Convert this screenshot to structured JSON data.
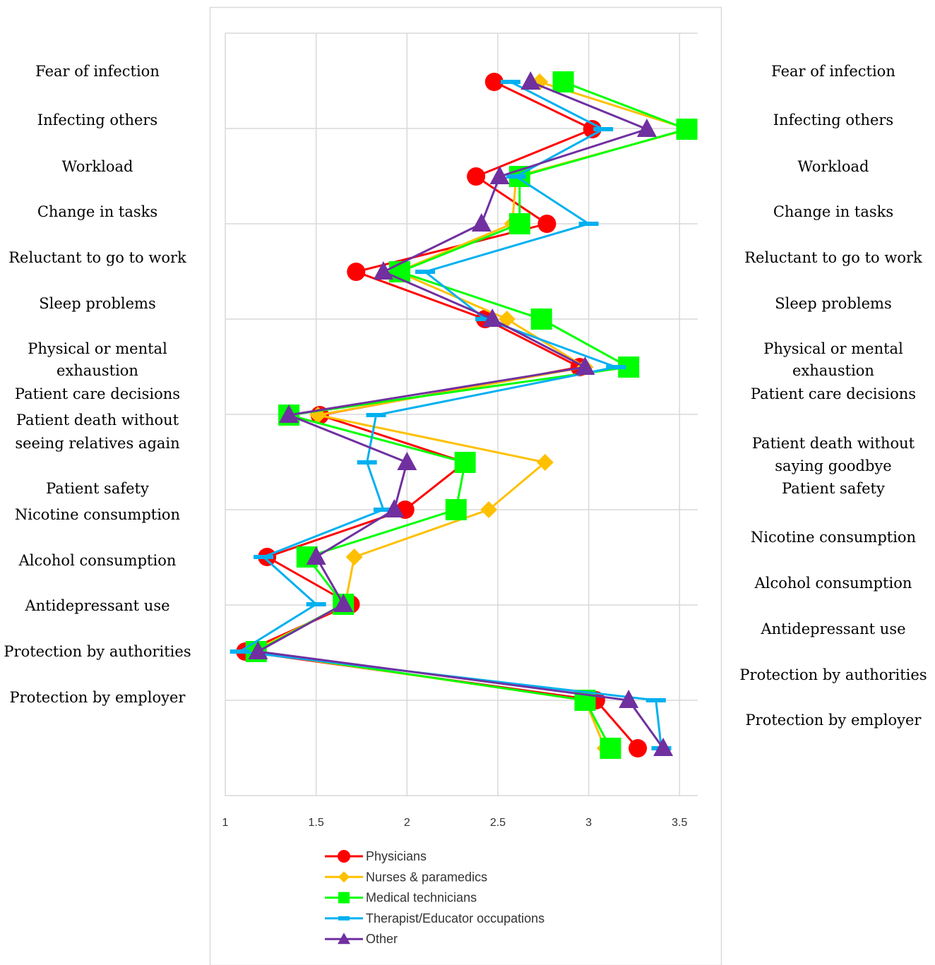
{
  "chart_data": {
    "type": "line",
    "orientation": "horizontal-values",
    "xlim": [
      1,
      3.6
    ],
    "x_ticks": [
      "1",
      "1.5",
      "2",
      "2.5",
      "3",
      "3.5"
    ],
    "x_tick_values": [
      1,
      1.5,
      2,
      2.5,
      3,
      3.5
    ],
    "grid": "vertical",
    "legend_position": "bottom",
    "left_categories": [
      "Fear of infection",
      "Infecting others",
      "Workload",
      "Change in tasks",
      "Reluctant to go to work",
      "Sleep problems",
      "Physical or mental exhaustion",
      "Patient care decisions",
      "Patient death without seeing relatives again",
      "Patient safety",
      "Nicotine consumption",
      "Alcohol consumption",
      "Antidepressant use",
      "Protection by authorities",
      "Protection by employer"
    ],
    "right_categories": [
      "Fear of infection",
      "Infecting others",
      "Workload",
      "Change in tasks",
      "Reluctant to go to work",
      "Sleep problems",
      "Physical or mental exhaustion",
      "Patient care decisions",
      "Patient death without saying goodbye",
      "Patient safety",
      "Nicotine consumption",
      "Alcohol consumption",
      "Antidepressant use",
      "Protection by authorities",
      "Protection by employer"
    ],
    "series": [
      {
        "name": "Physicians",
        "color": "#ff0000",
        "marker": "circle",
        "values": [
          2.48,
          3.02,
          2.38,
          2.77,
          1.72,
          2.43,
          2.95,
          1.52,
          2.32,
          1.99,
          1.23,
          1.69,
          1.11,
          3.04,
          3.27
        ]
      },
      {
        "name": "Nurses & paramedics",
        "color": "#ffc000",
        "marker": "diamond",
        "values": [
          2.73,
          3.55,
          2.6,
          2.58,
          1.95,
          2.55,
          2.98,
          1.51,
          2.76,
          2.45,
          1.71,
          1.66,
          1.15,
          2.98,
          3.09
        ]
      },
      {
        "name": "Medical technicians",
        "color": "#00ff00",
        "marker": "square",
        "values": [
          2.86,
          3.54,
          2.62,
          2.62,
          1.96,
          2.74,
          3.22,
          1.35,
          2.32,
          2.27,
          1.45,
          1.65,
          1.17,
          2.98,
          3.12
        ]
      },
      {
        "name": "Therapist/Educator occupations",
        "color": "#00b0f0",
        "marker": "dash",
        "values": [
          2.57,
          3.08,
          2.6,
          3.0,
          2.1,
          2.43,
          3.15,
          1.83,
          1.78,
          1.87,
          1.21,
          1.5,
          1.08,
          3.37,
          3.4
        ]
      },
      {
        "name": "Other",
        "color": "#7030a0",
        "marker": "triangle",
        "values": [
          2.68,
          3.32,
          2.51,
          2.41,
          1.87,
          2.47,
          2.98,
          1.35,
          2.0,
          1.93,
          1.5,
          1.65,
          1.18,
          3.22,
          3.41
        ]
      }
    ]
  }
}
